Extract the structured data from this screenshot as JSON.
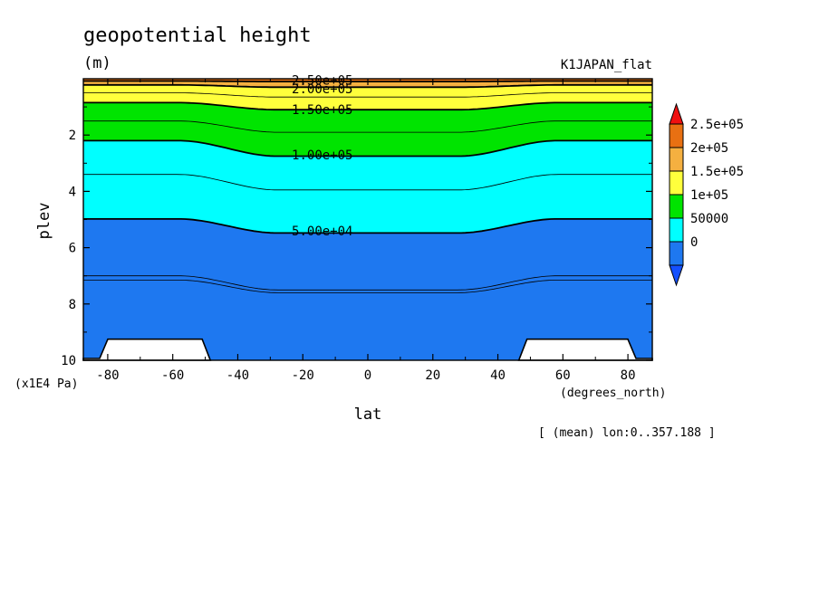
{
  "chart_data": {
    "type": "contour",
    "title": "geopotential height",
    "units": "(m)",
    "dataset": "K1JAPAN_flat",
    "xlabel": "lat",
    "x_unit_label": "(degrees_north)",
    "ylabel": "plev",
    "y_unit_label": "(x1E4 Pa)",
    "note": "[ (mean) lon:0..357.188 ]",
    "xlim": [
      -87.5,
      87.5
    ],
    "ylim": [
      10,
      0
    ],
    "x_ticks": [
      -80,
      -60,
      -40,
      -20,
      0,
      20,
      40,
      60,
      80
    ],
    "x_tick_labels": [
      "-80",
      "-60",
      "-40",
      "-20",
      "0",
      "20",
      "40",
      "60",
      "80"
    ],
    "y_ticks": [
      2,
      4,
      6,
      8,
      10
    ],
    "y_tick_labels": [
      "2",
      "4",
      "6",
      "8",
      "10"
    ],
    "fill_levels": [
      0,
      50000,
      100000,
      150000,
      200000,
      250000
    ],
    "fill_colors": [
      "#1e78f0",
      "#00ffff",
      "#00e400",
      "#ffff3c",
      "#f5b040",
      "#e87012"
    ],
    "colorbar_labels": [
      "2.5e+05",
      "2e+05",
      "1.5e+05",
      "1e+05",
      "50000",
      "0"
    ],
    "colorbar_below_color": "#1450ff",
    "colorbar_above_color": "#f01010",
    "contour_labels": [
      {
        "text": "2.50e+05",
        "lat": -14,
        "plev": 0.05
      },
      {
        "text": "2.00e+05",
        "lat": -14,
        "plev": 0.35
      },
      {
        "text": "1.50e+05",
        "lat": -14,
        "plev": 1.1
      },
      {
        "text": "1.00e+05",
        "lat": -14,
        "plev": 2.7
      },
      {
        "text": "5.00e+04",
        "lat": -14,
        "plev": 5.4
      }
    ],
    "filled_contours": [
      {
        "level": 250000,
        "color": "#e87012",
        "plev_edge": 0.08,
        "plev_center": 0.1
      },
      {
        "level": 200000,
        "color": "#f5b040",
        "plev_edge": 0.22,
        "plev_center": 0.3
      },
      {
        "level": 150000,
        "color": "#ffff3c",
        "plev_edge": 0.85,
        "plev_center": 1.1
      },
      {
        "level": 100000,
        "color": "#00e400",
        "plev_edge": 2.2,
        "plev_center": 2.75
      },
      {
        "level": 50000,
        "color": "#00ffff",
        "plev_edge": 4.98,
        "plev_center": 5.48
      }
    ],
    "line_contours": [
      {
        "plev_edge": 0.5,
        "plev_center": 0.65
      },
      {
        "plev_edge": 1.5,
        "plev_center": 1.9
      },
      {
        "plev_edge": 3.4,
        "plev_center": 3.95
      },
      {
        "plev_edge": 7.0,
        "plev_center": 7.5
      },
      {
        "plev_edge": 7.15,
        "plev_center": 7.6
      }
    ],
    "topography": [
      {
        "lat_start": -87.5,
        "lat_end": -49,
        "top_plev": 9.25
      },
      {
        "lat_start": 47,
        "lat_end": 87.5,
        "top_plev": 9.25
      }
    ]
  }
}
